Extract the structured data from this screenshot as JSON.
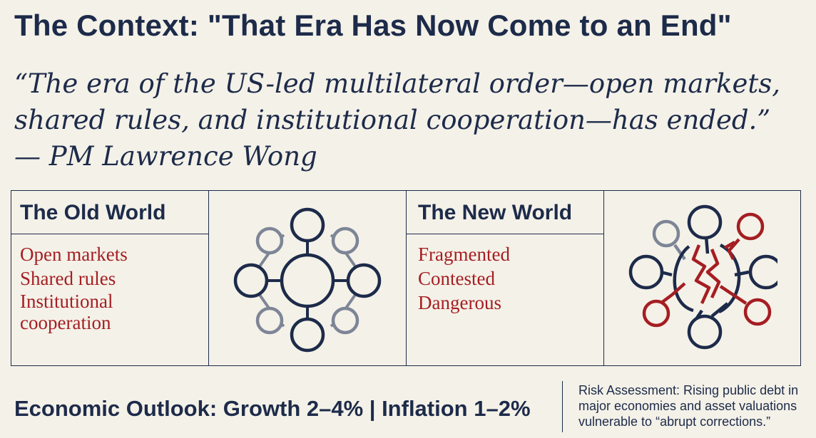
{
  "title": "The Context: \"That Era Has Now Come to an End\"",
  "quote": {
    "line1": "“The era of the US-led multilateral order—open markets,",
    "line2": "shared rules, and institutional cooperation—has ended.”",
    "line3": "— PM Lawrence Wong"
  },
  "old_world": {
    "heading": "The Old World",
    "items": [
      "Open markets",
      "Shared rules",
      "Institutional cooperation"
    ]
  },
  "new_world": {
    "heading": "The New World",
    "items": [
      "Fragmented",
      "Contested",
      "Dangerous"
    ]
  },
  "outlook": "Economic Outlook: Growth 2–4% | Inflation 1–2%",
  "risk": "Risk Assessment: Rising public debt in major economies and asset valuations vulnerable to “abrupt corrections.”",
  "colors": {
    "navy": "#1d2b4a",
    "red": "#a51e22",
    "gray": "#7d8596",
    "background": "#f4f1e8"
  }
}
